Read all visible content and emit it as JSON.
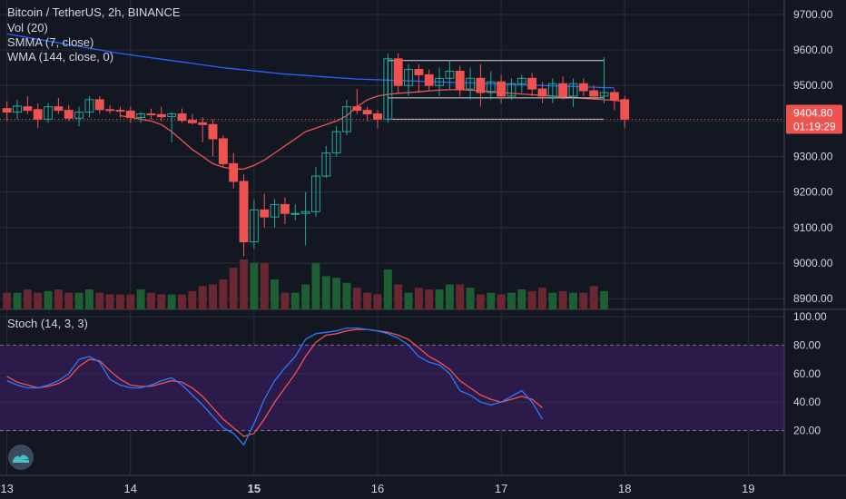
{
  "header": {
    "title": "Bitcoin / TetherUS, 2h, BINANCE",
    "indicators": [
      "Vol (20)",
      "SMMA (7, close)",
      "WMA (144, close, 0)"
    ],
    "stoch_label": "Stoch (14, 3, 3)"
  },
  "price_badge": {
    "value": "9404.80",
    "countdown": "01:19:29"
  },
  "colors": {
    "background": "#131722",
    "grid": "#2a2e39",
    "up": "#26a69a",
    "down": "#ef5350",
    "volume_up": "#1e5e33",
    "volume_down": "#6b2731",
    "wma": "#2962ff",
    "smma": "#ef5350",
    "stoch_k": "#2979ff",
    "stoch_d": "#ef5350",
    "stoch_band": "#2c1a4a"
  },
  "chart_data": {
    "type": "candlestick",
    "price_axis": {
      "ticks": [
        8900,
        9000,
        9100,
        9200,
        9300,
        9400,
        9500,
        9600,
        9700
      ],
      "tick_labels": [
        "8900.00",
        "9000.00",
        "9100.00",
        "9200.00",
        "9300.00",
        "9400.00",
        "9500.00",
        "9600.00",
        "9700.00"
      ],
      "ylim": [
        8870,
        9720
      ]
    },
    "time_axis": {
      "labels": [
        "13",
        "14",
        "15",
        "16",
        "17",
        "18",
        "19"
      ],
      "bold": [
        "15"
      ],
      "day_index": [
        0,
        12,
        24,
        36,
        48,
        60,
        72
      ],
      "xlim": [
        0,
        76
      ]
    },
    "candles": [
      {
        "o": 9435,
        "h": 9455,
        "l": 9400,
        "c": 9425
      },
      {
        "o": 9425,
        "h": 9460,
        "l": 9405,
        "c": 9442
      },
      {
        "o": 9440,
        "h": 9470,
        "l": 9420,
        "c": 9430
      },
      {
        "o": 9432,
        "h": 9450,
        "l": 9380,
        "c": 9405
      },
      {
        "o": 9405,
        "h": 9450,
        "l": 9395,
        "c": 9440
      },
      {
        "o": 9440,
        "h": 9465,
        "l": 9420,
        "c": 9430
      },
      {
        "o": 9430,
        "h": 9445,
        "l": 9400,
        "c": 9408
      },
      {
        "o": 9408,
        "h": 9440,
        "l": 9385,
        "c": 9425
      },
      {
        "o": 9425,
        "h": 9470,
        "l": 9410,
        "c": 9460
      },
      {
        "o": 9460,
        "h": 9470,
        "l": 9420,
        "c": 9432
      },
      {
        "o": 9432,
        "h": 9445,
        "l": 9420,
        "c": 9430
      },
      {
        "o": 9430,
        "h": 9440,
        "l": 9410,
        "c": 9428
      },
      {
        "o": 9428,
        "h": 9440,
        "l": 9395,
        "c": 9410
      },
      {
        "o": 9410,
        "h": 9425,
        "l": 9395,
        "c": 9420
      },
      {
        "o": 9420,
        "h": 9435,
        "l": 9405,
        "c": 9418
      },
      {
        "o": 9418,
        "h": 9440,
        "l": 9400,
        "c": 9412
      },
      {
        "o": 9412,
        "h": 9425,
        "l": 9340,
        "c": 9420
      },
      {
        "o": 9420,
        "h": 9435,
        "l": 9395,
        "c": 9402
      },
      {
        "o": 9402,
        "h": 9420,
        "l": 9390,
        "c": 9395
      },
      {
        "o": 9395,
        "h": 9410,
        "l": 9340,
        "c": 9390
      },
      {
        "o": 9390,
        "h": 9405,
        "l": 9300,
        "c": 9350
      },
      {
        "o": 9350,
        "h": 9360,
        "l": 9270,
        "c": 9280
      },
      {
        "o": 9280,
        "h": 9310,
        "l": 9210,
        "c": 9230
      },
      {
        "o": 9230,
        "h": 9250,
        "l": 9020,
        "c": 9060
      },
      {
        "o": 9060,
        "h": 9180,
        "l": 9040,
        "c": 9150
      },
      {
        "o": 9150,
        "h": 9195,
        "l": 9100,
        "c": 9130
      },
      {
        "o": 9130,
        "h": 9180,
        "l": 9100,
        "c": 9165
      },
      {
        "o": 9165,
        "h": 9185,
        "l": 9110,
        "c": 9140
      },
      {
        "o": 9140,
        "h": 9165,
        "l": 9120,
        "c": 9140
      },
      {
        "o": 9140,
        "h": 9200,
        "l": 9050,
        "c": 9145
      },
      {
        "o": 9145,
        "h": 9270,
        "l": 9130,
        "c": 9245
      },
      {
        "o": 9245,
        "h": 9330,
        "l": 9240,
        "c": 9310
      },
      {
        "o": 9310,
        "h": 9385,
        "l": 9300,
        "c": 9370
      },
      {
        "o": 9370,
        "h": 9460,
        "l": 9360,
        "c": 9440
      },
      {
        "o": 9440,
        "h": 9490,
        "l": 9420,
        "c": 9430
      },
      {
        "o": 9430,
        "h": 9440,
        "l": 9400,
        "c": 9420
      },
      {
        "o": 9420,
        "h": 9430,
        "l": 9380,
        "c": 9405
      },
      {
        "o": 9405,
        "h": 9590,
        "l": 9395,
        "c": 9575
      },
      {
        "o": 9575,
        "h": 9590,
        "l": 9480,
        "c": 9500
      },
      {
        "o": 9500,
        "h": 9560,
        "l": 9470,
        "c": 9545
      },
      {
        "o": 9545,
        "h": 9560,
        "l": 9480,
        "c": 9530
      },
      {
        "o": 9530,
        "h": 9545,
        "l": 9485,
        "c": 9500
      },
      {
        "o": 9500,
        "h": 9550,
        "l": 9470,
        "c": 9520
      },
      {
        "o": 9520,
        "h": 9570,
        "l": 9490,
        "c": 9540
      },
      {
        "o": 9540,
        "h": 9555,
        "l": 9470,
        "c": 9490
      },
      {
        "o": 9490,
        "h": 9550,
        "l": 9460,
        "c": 9520
      },
      {
        "o": 9520,
        "h": 9560,
        "l": 9440,
        "c": 9480
      },
      {
        "o": 9480,
        "h": 9540,
        "l": 9460,
        "c": 9510
      },
      {
        "o": 9510,
        "h": 9530,
        "l": 9450,
        "c": 9470
      },
      {
        "o": 9470,
        "h": 9520,
        "l": 9460,
        "c": 9505
      },
      {
        "o": 9505,
        "h": 9530,
        "l": 9480,
        "c": 9520
      },
      {
        "o": 9520,
        "h": 9535,
        "l": 9470,
        "c": 9490
      },
      {
        "o": 9490,
        "h": 9510,
        "l": 9450,
        "c": 9470
      },
      {
        "o": 9470,
        "h": 9520,
        "l": 9450,
        "c": 9505
      },
      {
        "o": 9505,
        "h": 9525,
        "l": 9460,
        "c": 9470
      },
      {
        "o": 9470,
        "h": 9520,
        "l": 9440,
        "c": 9505
      },
      {
        "o": 9505,
        "h": 9520,
        "l": 9470,
        "c": 9485
      },
      {
        "o": 9485,
        "h": 9500,
        "l": 9460,
        "c": 9470
      },
      {
        "o": 9470,
        "h": 9580,
        "l": 9450,
        "c": 9480
      },
      {
        "o": 9480,
        "h": 9490,
        "l": 9430,
        "c": 9460
      },
      {
        "o": 9460,
        "h": 9470,
        "l": 9380,
        "c": 9405
      }
    ],
    "volume": [
      10,
      10,
      12,
      10,
      11,
      12,
      10,
      10,
      12,
      10,
      9,
      9,
      9,
      12,
      10,
      9,
      9,
      9,
      11,
      14,
      15,
      18,
      25,
      30,
      28,
      28,
      18,
      10,
      10,
      15,
      28,
      20,
      19,
      16,
      13,
      10,
      9,
      24,
      15,
      10,
      13,
      12,
      12,
      15,
      15,
      13,
      9,
      10,
      9,
      10,
      12,
      11,
      13,
      10,
      11,
      10,
      10,
      14,
      11
    ],
    "stoch": {
      "ylim": [
        0,
        100
      ],
      "band": [
        20,
        80
      ],
      "ticks": [
        20,
        40,
        60,
        80,
        100
      ],
      "tick_labels": [
        "20.00",
        "40.00",
        "60.00",
        "80.00",
        "100.00"
      ],
      "k": [
        55,
        52,
        50,
        50,
        52,
        55,
        60,
        70,
        72,
        68,
        56,
        52,
        50,
        50,
        52,
        55,
        57,
        52,
        45,
        38,
        30,
        22,
        18,
        10,
        25,
        42,
        55,
        64,
        72,
        84,
        88,
        89,
        90,
        92,
        92,
        91,
        90,
        88,
        85,
        80,
        72,
        68,
        66,
        60,
        48,
        45,
        40,
        38,
        40,
        44,
        48,
        40,
        28
      ],
      "d": [
        58,
        54,
        52,
        50,
        51,
        53,
        57,
        65,
        70,
        69,
        62,
        56,
        52,
        51,
        51,
        53,
        55,
        54,
        50,
        44,
        36,
        28,
        22,
        16,
        18,
        28,
        40,
        50,
        60,
        72,
        82,
        87,
        88,
        90,
        91,
        91,
        90,
        89,
        87,
        84,
        78,
        72,
        68,
        63,
        55,
        50,
        45,
        42,
        40,
        42,
        44,
        42,
        36
      ]
    },
    "overlays": {
      "wma": [
        9645,
        9640,
        9635,
        9630,
        9625,
        9620,
        9615,
        9610,
        9605,
        9600,
        9595,
        9590,
        9586,
        9582,
        9578,
        9574,
        9570,
        9566,
        9562,
        9558,
        9554,
        9550,
        9547,
        9544,
        9541,
        9538,
        9535,
        9532,
        9530,
        9528,
        9526,
        9524,
        9522,
        9520,
        9518,
        9517,
        9516,
        9515,
        9514,
        9513,
        9512,
        9511,
        9510,
        9509,
        9508,
        9507,
        9506,
        9505,
        9504,
        9503,
        9502,
        9501,
        9500,
        9499,
        9498,
        9497,
        9496,
        9495,
        9494,
        9493
      ],
      "smma": [
        9415,
        9410,
        9405,
        9400,
        9390,
        9370,
        9345,
        9320,
        9300,
        9280,
        9270,
        9265,
        9265,
        9275,
        9290,
        9310,
        9330,
        9350,
        9370,
        9380,
        9390,
        9400,
        9415,
        9440,
        9460,
        9470,
        9475,
        9478,
        9480,
        9482,
        9485,
        9487,
        9488,
        9488,
        9487,
        9485,
        9483,
        9480,
        9478,
        9476,
        9474,
        9472,
        9470,
        9468,
        9466,
        9464,
        9462,
        9460,
        9458,
        9455
      ]
    },
    "levels": [
      {
        "price": 9570,
        "from": 37,
        "to": 58
      },
      {
        "price": 9465,
        "from": 37,
        "to": 58
      },
      {
        "price": 9405,
        "from": 37,
        "to": 58
      }
    ]
  }
}
